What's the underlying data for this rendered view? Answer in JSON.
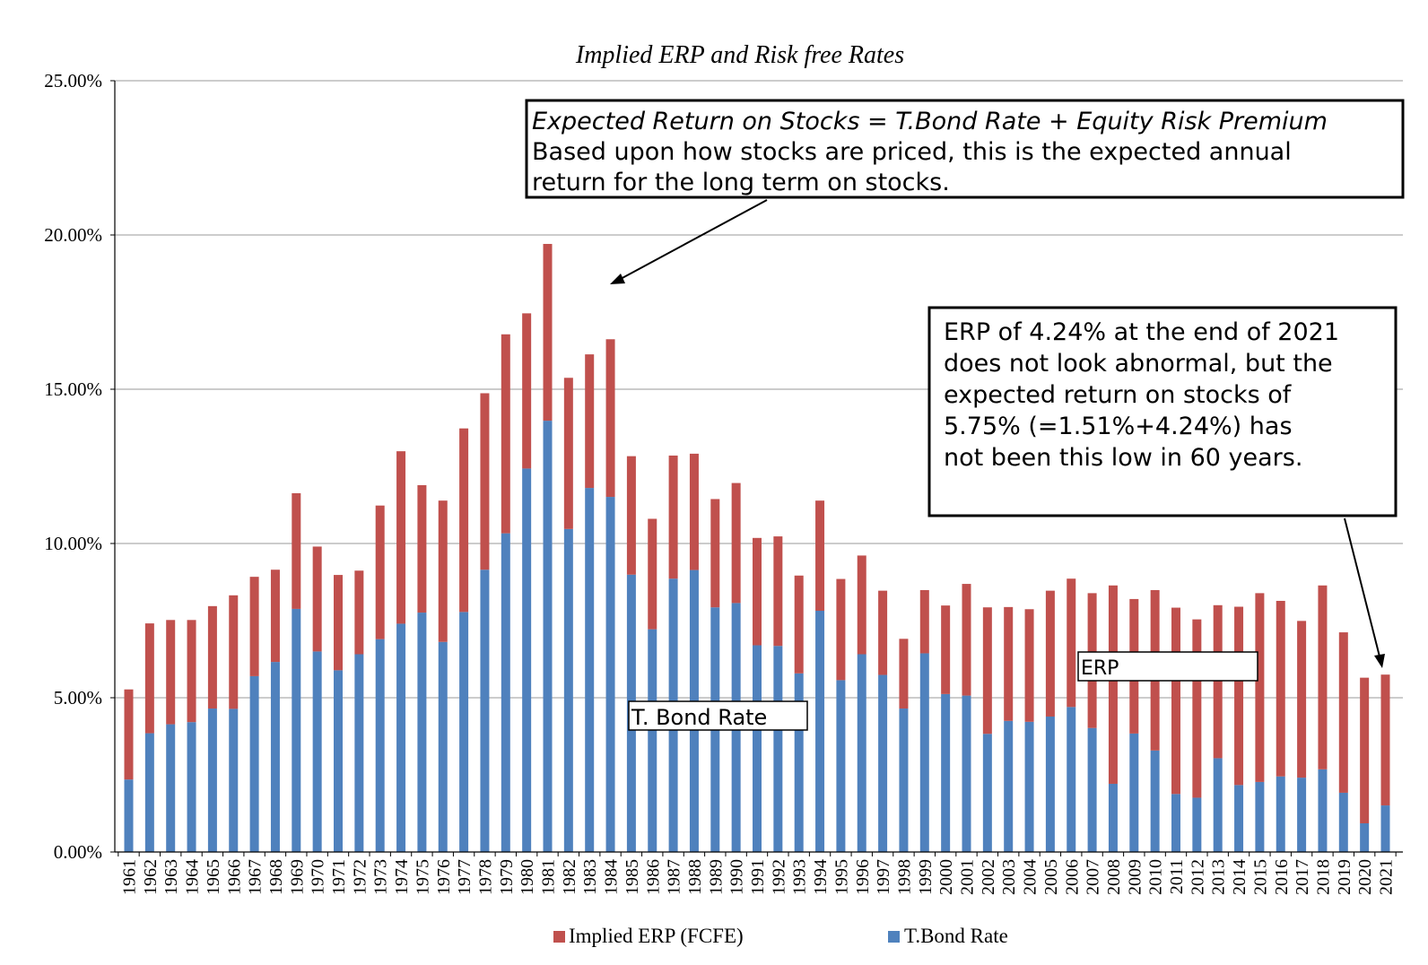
{
  "chart_data": {
    "type": "bar",
    "stacked": true,
    "title": "Implied ERP and Risk free Rates",
    "xlabel": "",
    "ylabel": "",
    "ylim": [
      0,
      25
    ],
    "yticks": [
      "0.00%",
      "5.00%",
      "10.00%",
      "15.00%",
      "20.00%",
      "25.00%"
    ],
    "grid": true,
    "legend_position": "bottom",
    "categories": [
      "1961",
      "1962",
      "1963",
      "1964",
      "1965",
      "1966",
      "1967",
      "1968",
      "1969",
      "1970",
      "1971",
      "1972",
      "1973",
      "1974",
      "1975",
      "1976",
      "1977",
      "1978",
      "1979",
      "1980",
      "1981",
      "1982",
      "1983",
      "1984",
      "1985",
      "1986",
      "1987",
      "1988",
      "1989",
      "1990",
      "1991",
      "1992",
      "1993",
      "1994",
      "1995",
      "1996",
      "1997",
      "1998",
      "1999",
      "2000",
      "2001",
      "2002",
      "2003",
      "2004",
      "2005",
      "2006",
      "2007",
      "2008",
      "2009",
      "2010",
      "2011",
      "2012",
      "2013",
      "2014",
      "2015",
      "2016",
      "2017",
      "2018",
      "2019",
      "2020",
      "2021"
    ],
    "series": [
      {
        "name": "T.Bond Rate",
        "color": "#4f81bd",
        "values": [
          2.35,
          3.85,
          4.14,
          4.21,
          4.65,
          4.64,
          5.7,
          6.16,
          7.88,
          6.5,
          5.89,
          6.41,
          6.9,
          7.4,
          7.76,
          6.81,
          7.78,
          9.15,
          10.33,
          12.43,
          13.98,
          10.47,
          11.8,
          11.51,
          8.99,
          7.22,
          8.86,
          9.14,
          7.93,
          8.07,
          6.7,
          6.68,
          5.79,
          7.82,
          5.57,
          6.41,
          5.74,
          4.65,
          6.44,
          5.12,
          5.07,
          3.83,
          4.25,
          4.22,
          4.39,
          4.7,
          4.02,
          2.21,
          3.84,
          3.29,
          1.88,
          1.76,
          3.04,
          2.17,
          2.27,
          2.45,
          2.41,
          2.68,
          1.92,
          0.93,
          1.51
        ]
      },
      {
        "name": "Implied ERP (FCFE)",
        "color": "#c0504d",
        "values": [
          2.92,
          3.56,
          3.38,
          3.31,
          3.32,
          3.68,
          3.22,
          2.99,
          3.75,
          3.4,
          3.09,
          2.71,
          4.33,
          5.59,
          4.13,
          4.58,
          5.95,
          5.72,
          6.45,
          5.03,
          5.73,
          4.9,
          4.33,
          5.11,
          3.84,
          3.58,
          3.99,
          3.77,
          3.51,
          3.89,
          3.48,
          3.55,
          3.17,
          3.57,
          3.28,
          3.2,
          2.73,
          2.26,
          2.05,
          2.87,
          3.62,
          4.1,
          3.69,
          3.65,
          4.08,
          4.16,
          4.37,
          6.43,
          4.36,
          5.2,
          6.04,
          5.78,
          4.96,
          5.78,
          6.12,
          5.69,
          5.08,
          5.96,
          5.2,
          4.72,
          4.24
        ]
      }
    ],
    "legend": [
      {
        "label": "Implied ERP (FCFE)",
        "color": "#c0504d"
      },
      {
        "label": "T.Bond Rate",
        "color": "#4f81bd"
      }
    ],
    "annotations": {
      "box1": {
        "line1": "Expected Return on Stocks = T.Bond Rate + Equity Risk Premium",
        "line2": "Based upon how stocks are priced, this is the expected annual",
        "line3": "return for the long term on stocks."
      },
      "box2": {
        "line1": "ERP of 4.24% at the end of 2021",
        "line2": "does not look abnormal, but the",
        "line3": "expected return on stocks of",
        "line4": "5.75% (=1.51%+4.24%) has",
        "line5": "not been this low in 60 years."
      },
      "label_tbond": "T. Bond Rate",
      "label_erp": "ERP"
    }
  }
}
